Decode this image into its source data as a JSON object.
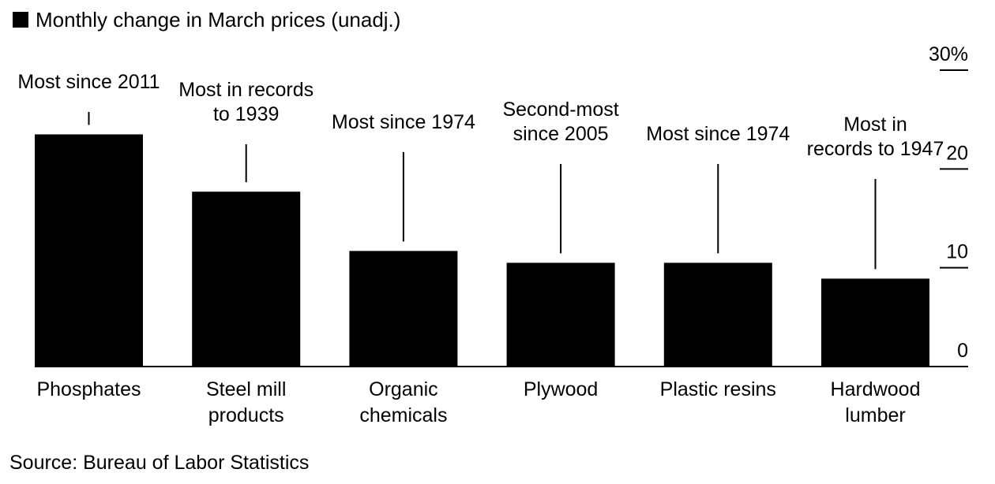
{
  "chart_data": {
    "type": "bar",
    "title": "",
    "legend": {
      "label": "Monthly change in March prices (unadj.)",
      "color": "#000000",
      "position": "top-left"
    },
    "categories": [
      [
        "Phosphates"
      ],
      [
        "Steel mill",
        "products"
      ],
      [
        "Organic",
        "chemicals"
      ],
      [
        "Plywood"
      ],
      [
        "Plastic resins"
      ],
      [
        "Hardwood",
        "lumber"
      ]
    ],
    "values": [
      23.5,
      17.7,
      11.7,
      10.5,
      10.5,
      8.9
    ],
    "annotations": [
      [
        "Most since 2011"
      ],
      [
        "Most in records",
        "to 1939"
      ],
      [
        "Most since 1974"
      ],
      [
        "Second-most",
        "since 2005"
      ],
      [
        "Most since 1974"
      ],
      [
        "Most in",
        "records to 1947"
      ]
    ],
    "y_axis": {
      "side": "right",
      "ylim": [
        0,
        30
      ],
      "ticks": [
        0,
        10,
        20,
        30
      ],
      "tick_labels": [
        "0",
        "10",
        "20",
        "30%"
      ]
    },
    "xlabel": "",
    "ylabel": "",
    "grid": false,
    "bar_color": "#000000"
  },
  "source": "Source: Bureau of Labor Statistics"
}
